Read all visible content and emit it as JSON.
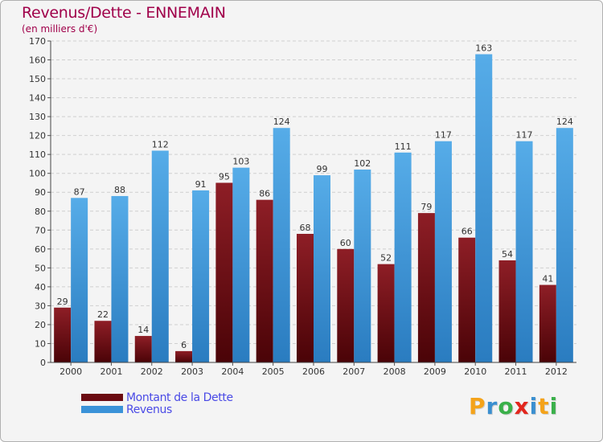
{
  "title": "Revenus/Dette - ENNEMAIN",
  "subtitle": "(en milliers d'€)",
  "colors": {
    "debt": "#6b0b12",
    "revenue": "#3a92d8",
    "title": "#a0004a",
    "legend_text": "#4a4ae6"
  },
  "legend": [
    {
      "label": "Montant de la Dette",
      "color": "#6b0b12"
    },
    {
      "label": "Revenus",
      "color": "#3a92d8"
    }
  ],
  "logo": {
    "text": "Proxiti",
    "letters": [
      "P",
      "r",
      "o",
      "x",
      "i",
      "t",
      "i"
    ],
    "letter_colors": [
      "#f4a31a",
      "#3a8fd0",
      "#3ab04a",
      "#e2261d",
      "#3a8fd0",
      "#f4a31a",
      "#3ab04a"
    ]
  },
  "chart_data": {
    "type": "bar",
    "title": "Revenus/Dette - ENNEMAIN",
    "subtitle": "(en milliers d'€)",
    "categories": [
      "2000",
      "2001",
      "2002",
      "2003",
      "2004",
      "2005",
      "2006",
      "2007",
      "2008",
      "2009",
      "2010",
      "2011",
      "2012"
    ],
    "series": [
      {
        "name": "Montant de la Dette",
        "values": [
          29,
          22,
          14,
          6,
          95,
          86,
          68,
          60,
          52,
          79,
          66,
          54,
          41
        ]
      },
      {
        "name": "Revenus",
        "values": [
          87,
          88,
          112,
          91,
          103,
          124,
          99,
          102,
          111,
          117,
          163,
          117,
          124
        ]
      }
    ],
    "ylim": [
      0,
      170
    ],
    "yticks": [
      0,
      10,
      20,
      30,
      40,
      50,
      60,
      70,
      80,
      90,
      100,
      110,
      120,
      130,
      140,
      150,
      160,
      170
    ],
    "grid": true,
    "legend_position": "bottom-left",
    "xlabel": "",
    "ylabel": ""
  }
}
